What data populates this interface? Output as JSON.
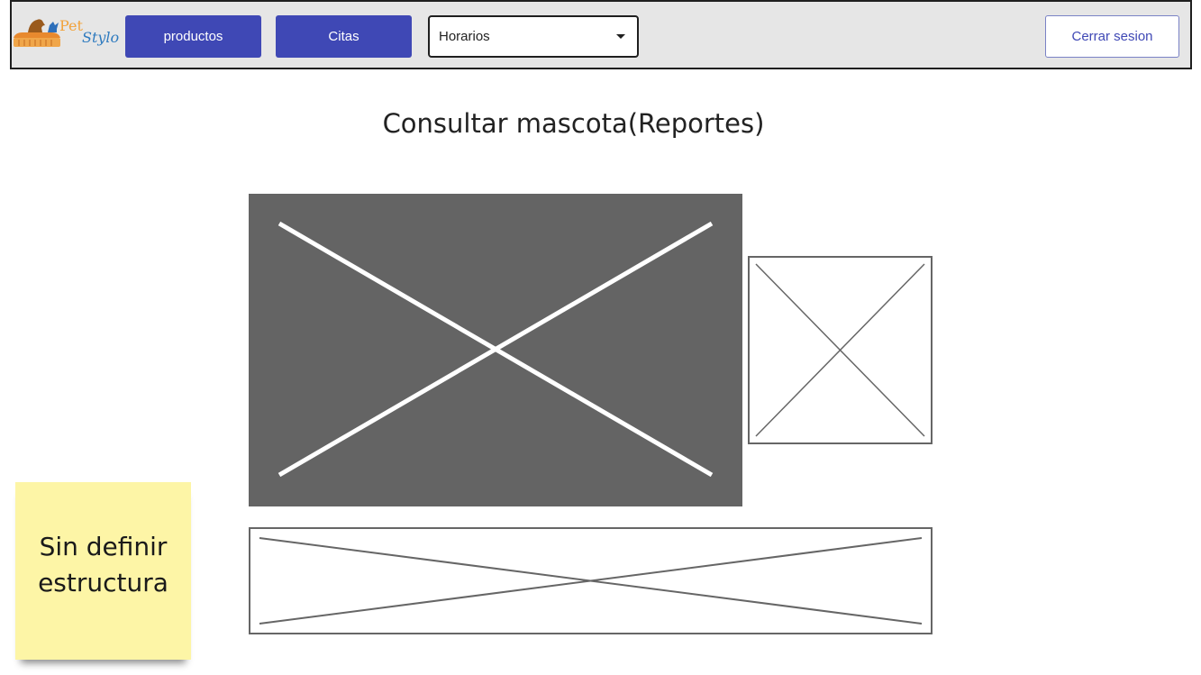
{
  "header": {
    "logo": {
      "text_pet": "Pet",
      "text_stylo": "Stylo"
    },
    "buttons": {
      "productos": "productos",
      "citas": "Citas"
    },
    "dropdown": {
      "selected": "Horarios"
    },
    "logout_label": "Cerrar sesion"
  },
  "main": {
    "title": "Consultar mascota(Reportes)"
  },
  "sticky_note": {
    "lines": [
      "Sin definir",
      "estructura"
    ]
  },
  "colors": {
    "nav_button": "#3f48b5",
    "navbar_bg": "#e6e6e6",
    "sticky_bg": "#fdf5a6",
    "image_placeholder_dark": "#646464"
  }
}
